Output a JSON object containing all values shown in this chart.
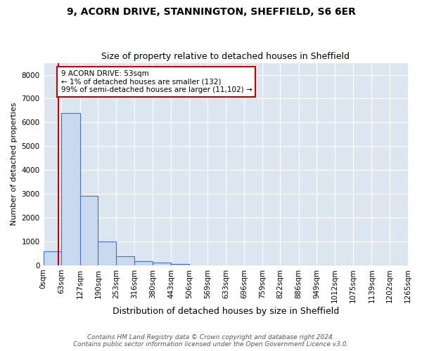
{
  "title1": "9, ACORN DRIVE, STANNINGTON, SHEFFIELD, S6 6ER",
  "title2": "Size of property relative to detached houses in Sheffield",
  "xlabel": "Distribution of detached houses by size in Sheffield",
  "ylabel": "Number of detached properties",
  "bar_values": [
    580,
    6380,
    2900,
    990,
    370,
    170,
    110,
    60,
    0,
    0,
    0,
    0,
    0,
    0,
    0,
    0,
    0,
    0,
    0,
    0
  ],
  "bar_edges": [
    0,
    63,
    127,
    190,
    253,
    316,
    380,
    443,
    506,
    569,
    633,
    696,
    759,
    822,
    886,
    949,
    1012,
    1075,
    1139,
    1202,
    1265
  ],
  "x_labels": [
    "0sqm",
    "63sqm",
    "127sqm",
    "190sqm",
    "253sqm",
    "316sqm",
    "380sqm",
    "443sqm",
    "506sqm",
    "569sqm",
    "633sqm",
    "696sqm",
    "759sqm",
    "822sqm",
    "886sqm",
    "949sqm",
    "1012sqm",
    "1075sqm",
    "1139sqm",
    "1202sqm",
    "1265sqm"
  ],
  "bar_color": "#c9d9ef",
  "bar_edge_color": "#4472c4",
  "property_line_x": 53,
  "property_line_color": "#cc0000",
  "annotation_text": "9 ACORN DRIVE: 53sqm\n← 1% of detached houses are smaller (132)\n99% of semi-detached houses are larger (11,102) →",
  "annotation_box_color": "#ffffff",
  "annotation_box_edge": "#cc0000",
  "ylim": [
    0,
    8500
  ],
  "yticks": [
    0,
    1000,
    2000,
    3000,
    4000,
    5000,
    6000,
    7000,
    8000
  ],
  "fig_background": "#ffffff",
  "plot_background": "#dce6f1",
  "footer": "Contains HM Land Registry data © Crown copyright and database right 2024.\nContains public sector information licensed under the Open Government Licence v3.0.",
  "grid_color": "#ffffff",
  "title1_fontsize": 10,
  "title2_fontsize": 9,
  "xlabel_fontsize": 9,
  "ylabel_fontsize": 8,
  "tick_fontsize": 7.5,
  "annotation_fontsize": 7.5,
  "footer_fontsize": 6.5
}
